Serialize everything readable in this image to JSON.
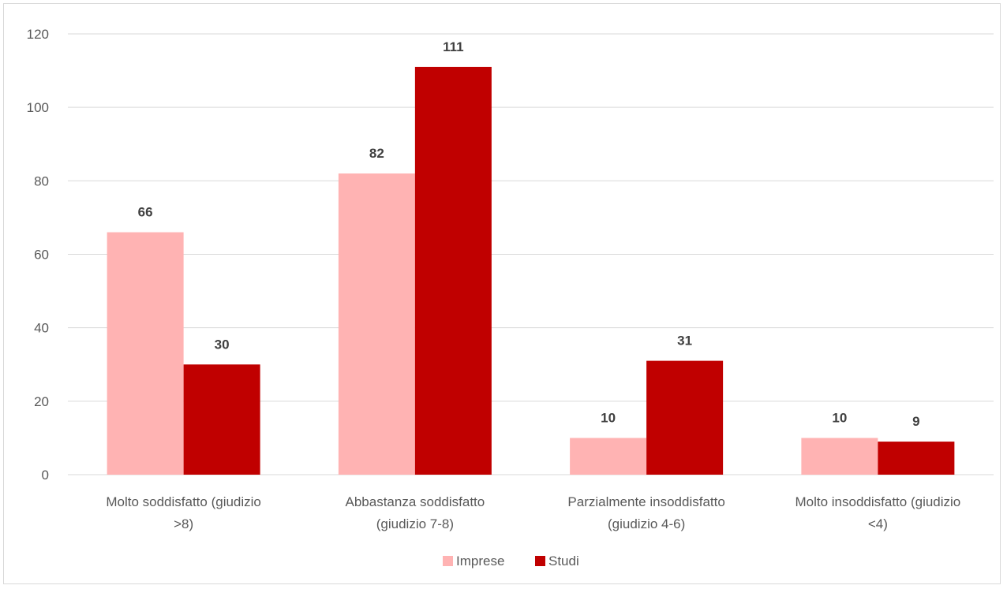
{
  "chart_data": {
    "type": "bar",
    "categories": [
      [
        "Molto soddisfatto (giudizio",
        ">8)"
      ],
      [
        "Abbastanza soddisfatto",
        "(giudizio 7-8)"
      ],
      [
        "Parzialmente insoddisfatto",
        "(giudizio 4-6)"
      ],
      [
        "Molto insoddisfatto (giudizio",
        "<4)"
      ]
    ],
    "series": [
      {
        "name": "Imprese",
        "values": [
          66,
          82,
          10,
          10
        ],
        "color": "#ffb3b3"
      },
      {
        "name": "Studi",
        "values": [
          30,
          111,
          31,
          9
        ],
        "color": "#c00000"
      }
    ],
    "ylim": [
      0,
      120
    ],
    "yticks": [
      0,
      20,
      40,
      60,
      80,
      100,
      120
    ],
    "grid": true,
    "data_labels": true,
    "legend_position": "bottom"
  }
}
